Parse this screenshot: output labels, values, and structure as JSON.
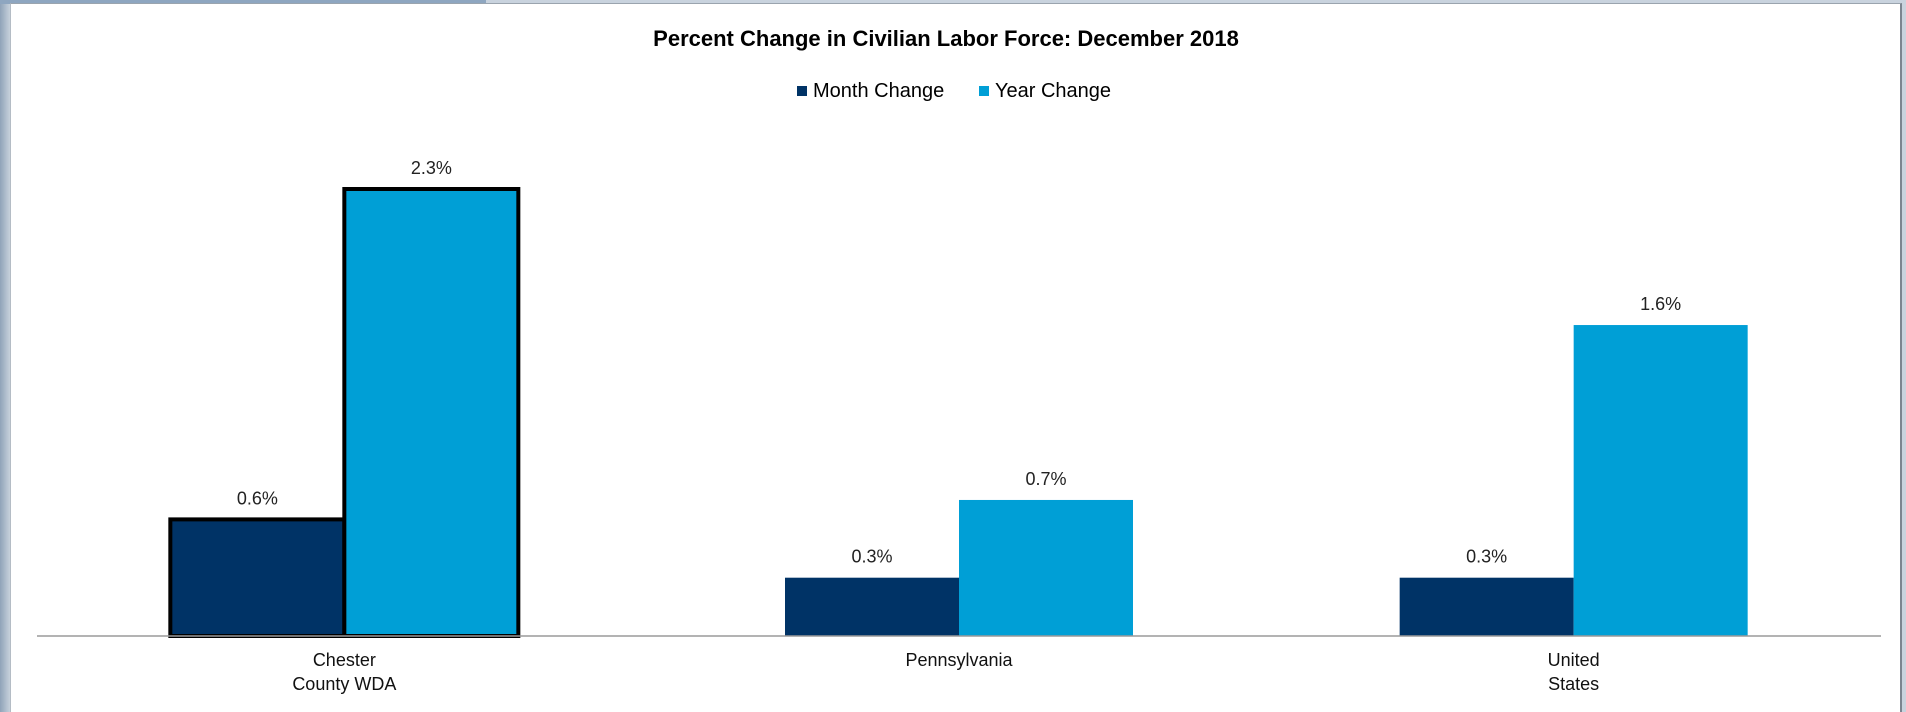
{
  "chart_data": {
    "type": "bar",
    "title": "Percent Change in Civilian Labor Force: December 2018",
    "categories": [
      [
        "Chester",
        "County WDA"
      ],
      [
        "Pennsylvania"
      ],
      [
        "United",
        "States"
      ]
    ],
    "series": [
      {
        "name": "Month Change",
        "color": "#003366",
        "values": [
          0.6,
          0.3,
          0.3
        ],
        "labels": [
          "0.6%",
          "0.3%",
          "0.3%"
        ]
      },
      {
        "name": "Year Change",
        "color": "#009fd6",
        "values": [
          2.3,
          0.7,
          1.6
        ],
        "labels": [
          "2.3%",
          "0.7%",
          "1.6%"
        ]
      }
    ],
    "highlighted_category": 0,
    "ylim": [
      0,
      2.3
    ],
    "legend_position": "top-center",
    "grid": false,
    "xlabel": "",
    "ylabel": ""
  }
}
